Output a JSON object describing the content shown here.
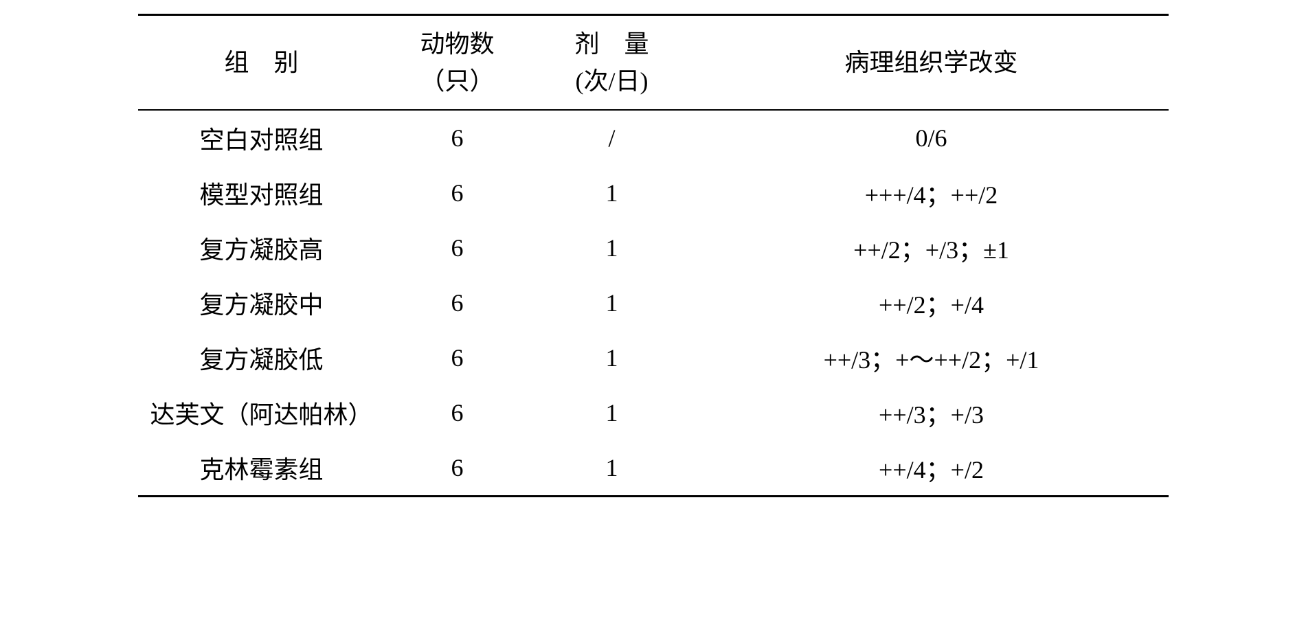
{
  "table": {
    "headers": {
      "group": "组　别",
      "count_top": "动物数",
      "count_sub": "（只）",
      "dose_top": "剂　量",
      "dose_sub": "(次/日)",
      "pathology": "病理组织学改变"
    },
    "rows": [
      {
        "group": "空白对照组",
        "count": "6",
        "dose": "/",
        "pathology": "0/6"
      },
      {
        "group": "模型对照组",
        "count": "6",
        "dose": "1",
        "pathology": "+++/4；++/2"
      },
      {
        "group": "复方凝胶高",
        "count": "6",
        "dose": "1",
        "pathology": "++/2；+/3；±1"
      },
      {
        "group": "复方凝胶中",
        "count": "6",
        "dose": "1",
        "pathology": "++/2；+/4"
      },
      {
        "group": "复方凝胶低",
        "count": "6",
        "dose": "1",
        "pathology": "++/3；+～++/2；+/1"
      },
      {
        "group": "达芙文（阿达帕林）",
        "count": "6",
        "dose": "1",
        "pathology": "++/3；+/3"
      },
      {
        "group": "克林霉素组",
        "count": "6",
        "dose": "1",
        "pathology": "++/4；+/2"
      }
    ]
  }
}
